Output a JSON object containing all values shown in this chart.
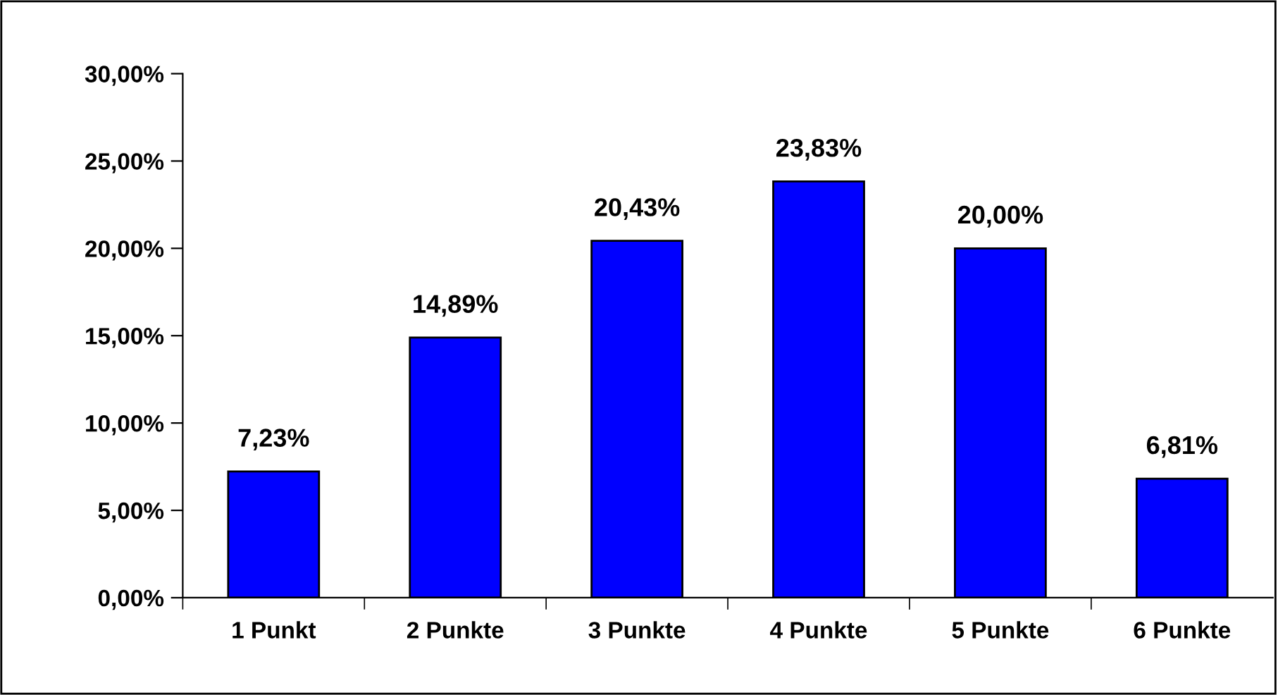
{
  "chart_data": {
    "type": "bar",
    "categories": [
      "1 Punkt",
      "2 Punkte",
      "3 Punkte",
      "4 Punkte",
      "5 Punkte",
      "6 Punkte"
    ],
    "values": [
      7.23,
      14.89,
      20.43,
      23.83,
      20.0,
      6.81
    ],
    "value_labels": [
      "7,23%",
      "14,89%",
      "20,43%",
      "23,83%",
      "20,00%",
      "6,81%"
    ],
    "color": "#0000ff",
    "ylim": [
      0,
      30
    ],
    "yticks": [
      {
        "value": 0,
        "label": "0,00%"
      },
      {
        "value": 5,
        "label": "5,00%"
      },
      {
        "value": 10,
        "label": "10,00%"
      },
      {
        "value": 15,
        "label": "15,00%"
      },
      {
        "value": 20,
        "label": "20,00%"
      },
      {
        "value": 25,
        "label": "25,00%"
      },
      {
        "value": 30,
        "label": "30,00%"
      }
    ],
    "grid": false,
    "legend": false
  }
}
